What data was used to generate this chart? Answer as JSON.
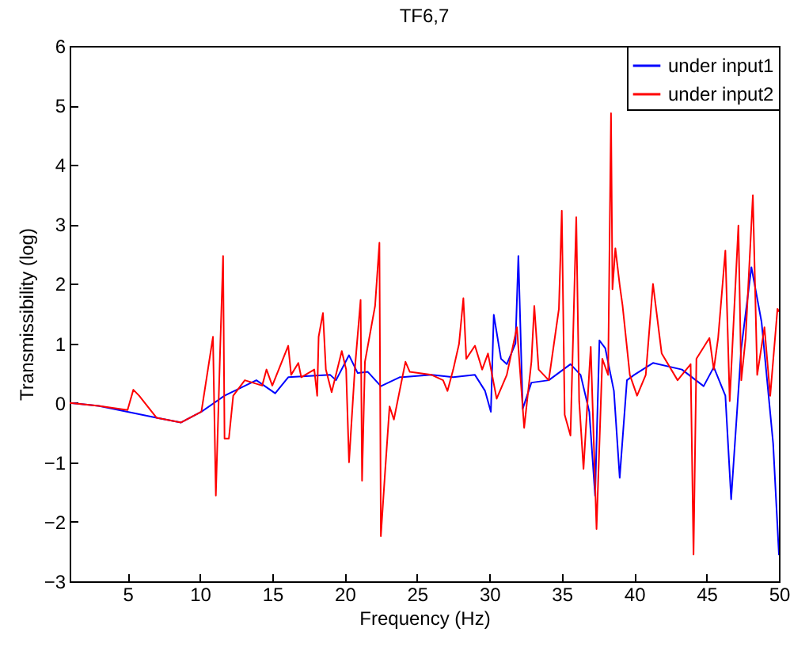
{
  "chart_data": {
    "type": "line",
    "title": "TF6,7",
    "xlabel": "Frequency (Hz)",
    "ylabel": "Transmissibility (log)",
    "xlim": [
      1,
      50
    ],
    "ylim": [
      -3,
      6
    ],
    "xticks": [
      5,
      10,
      15,
      20,
      25,
      30,
      35,
      40,
      45,
      50
    ],
    "yticks": [
      -3,
      -2,
      -1,
      0,
      1,
      2,
      3,
      4,
      5,
      6
    ],
    "grid": false,
    "legend": "top right",
    "marker": "none",
    "line_style": "solid",
    "series": [
      {
        "name": "under input1",
        "color": "#0000ff",
        "x": [
          1,
          3,
          5,
          7,
          8.7,
          10.1,
          11.7,
          12.8,
          13.9,
          15.2,
          16.1,
          19,
          19.4,
          20.3,
          20.9,
          21.6,
          22.5,
          23.8,
          26,
          27.5,
          29,
          29.7,
          30.1,
          30.3,
          30.8,
          31.2,
          31.8,
          32,
          32.3,
          32.9,
          34.1,
          35.6,
          36.3,
          36.9,
          37.3,
          37.6,
          38,
          38.6,
          39,
          39.5,
          40,
          41.3,
          43.3,
          44.8,
          45.5,
          46.3,
          46.7,
          47.4,
          48.1,
          48.8,
          49.6,
          50
        ],
        "values": [
          0,
          -0.05,
          -0.15,
          -0.25,
          -0.33,
          -0.15,
          0.12,
          0.25,
          0.38,
          0.16,
          0.43,
          0.47,
          0.38,
          0.8,
          0.5,
          0.52,
          0.28,
          0.43,
          0.47,
          0.43,
          0.47,
          0.2,
          -0.15,
          1.48,
          0.74,
          0.65,
          1.0,
          2.47,
          -0.1,
          0.34,
          0.38,
          0.65,
          0.47,
          -0.15,
          -1.56,
          1.05,
          0.92,
          0.2,
          -1.26,
          0.38,
          0.47,
          0.67,
          0.56,
          0.28,
          0.6,
          0.12,
          -1.62,
          0.92,
          2.28,
          1.36,
          -0.68,
          -2.55
        ]
      },
      {
        "name": "under input2",
        "color": "#ff0000",
        "x": [
          1,
          3,
          5,
          5.4,
          5.8,
          7,
          8.7,
          10.1,
          10.9,
          11.1,
          11.4,
          11.6,
          11.7,
          12,
          12.3,
          13.1,
          14.3,
          14.6,
          15,
          16.1,
          16.3,
          16.8,
          17,
          17.9,
          18.1,
          18.2,
          18.5,
          18.7,
          19.1,
          19.8,
          20.1,
          20.3,
          20.7,
          21.1,
          21.2,
          21.4,
          22.1,
          22.4,
          22.5,
          22.8,
          23.1,
          23.4,
          24.2,
          24.5,
          26,
          26.8,
          27.1,
          27.5,
          27.9,
          28.2,
          28.4,
          29,
          29.5,
          29.9,
          30.5,
          31.2,
          31.9,
          32.4,
          32.9,
          33.1,
          33.4,
          34.1,
          34.8,
          35,
          35.2,
          35.6,
          36,
          36.2,
          36.5,
          37,
          37.4,
          37.8,
          38.2,
          38.4,
          38.5,
          38.7,
          39,
          39.2,
          39.7,
          40.2,
          40.8,
          41.3,
          41.9,
          43,
          43.9,
          44.1,
          44.3,
          45.2,
          45.5,
          45.8,
          46.3,
          46.6,
          47.2,
          47.4,
          47.7,
          48.2,
          48.5,
          49,
          49.4,
          49.9,
          50
        ],
        "values": [
          0,
          -0.05,
          -0.12,
          0.22,
          0.12,
          -0.25,
          -0.33,
          -0.15,
          1.11,
          -1.56,
          0.92,
          2.47,
          -0.6,
          -0.6,
          0.12,
          0.38,
          0.29,
          0.56,
          0.29,
          0.96,
          0.47,
          0.67,
          0.43,
          0.56,
          0.12,
          1.11,
          1.51,
          0.56,
          0.18,
          0.87,
          0.56,
          -1.0,
          0.56,
          1.73,
          -1.31,
          0.69,
          1.63,
          2.69,
          -2.24,
          -1.13,
          -0.06,
          -0.28,
          0.69,
          0.52,
          0.47,
          0.38,
          0.2,
          0.56,
          0.99,
          1.76,
          0.74,
          0.96,
          0.56,
          0.83,
          0.07,
          0.47,
          1.27,
          -0.42,
          0.69,
          1.63,
          0.56,
          0.38,
          1.58,
          3.23,
          -0.2,
          -0.55,
          3.12,
          0.03,
          -1.11,
          0.94,
          -2.12,
          0.74,
          0.47,
          4.87,
          1.91,
          2.6,
          1.98,
          1.63,
          0.47,
          0.12,
          0.47,
          2.0,
          0.83,
          0.38,
          0.65,
          -2.55,
          0.74,
          1.09,
          0.56,
          1.09,
          2.56,
          0.03,
          2.98,
          0.38,
          1.09,
          3.49,
          0.47,
          1.27,
          0.12,
          1.58,
          1.54
        ]
      }
    ]
  }
}
